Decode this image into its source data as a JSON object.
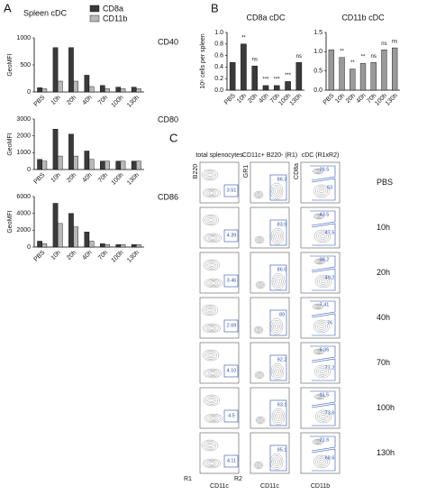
{
  "panel_labels": [
    "A",
    "B",
    "C"
  ],
  "chart_data": [
    {
      "type": "bar",
      "legend_title": "Spleen cDC",
      "title": "CD40",
      "ylabel": "GeoMFI",
      "categories": [
        "PBS",
        "10h",
        "20h",
        "40h",
        "70h",
        "100h",
        "130h"
      ],
      "series": [
        {
          "name": "CD8a",
          "color": "#3a3a3a",
          "values": [
            80,
            820,
            820,
            310,
            120,
            90,
            90
          ]
        },
        {
          "name": "CD11b",
          "color": "#b8b8b8",
          "values": [
            60,
            200,
            200,
            100,
            60,
            60,
            60
          ]
        }
      ],
      "ylim": [
        0,
        1000
      ],
      "yticks": [
        0,
        500,
        1000
      ]
    },
    {
      "type": "bar",
      "title": "CD80",
      "ylabel": "GeoMFI",
      "categories": [
        "PBS",
        "10h",
        "20h",
        "40h",
        "70h",
        "100h",
        "130h"
      ],
      "series": [
        {
          "color": "#3a3a3a",
          "values": [
            600,
            2400,
            2100,
            1100,
            500,
            500,
            500
          ]
        },
        {
          "color": "#b8b8b8",
          "values": [
            500,
            800,
            800,
            600,
            500,
            500,
            500
          ]
        }
      ],
      "ylim": [
        0,
        3000
      ],
      "yticks": [
        0,
        1000,
        2000,
        3000
      ]
    },
    {
      "type": "bar",
      "title": "CD86",
      "ylabel": "GeoMFI",
      "categories": [
        "PBS",
        "10h",
        "20h",
        "40h",
        "70h",
        "100h",
        "130h"
      ],
      "series": [
        {
          "color": "#3a3a3a",
          "values": [
            700,
            5200,
            4000,
            1800,
            400,
            300,
            300
          ]
        },
        {
          "color": "#b8b8b8",
          "values": [
            400,
            2800,
            2400,
            700,
            300,
            300,
            300
          ]
        }
      ],
      "ylim": [
        0,
        6000
      ],
      "yticks": [
        0,
        2000,
        4000,
        6000
      ]
    },
    {
      "type": "bar",
      "title": "CD8a cDC",
      "ylabel": "10⁶ cells per spleen",
      "categories": [
        "PBS",
        "10h",
        "20h",
        "40h",
        "70h",
        "100h",
        "130h"
      ],
      "series": [
        {
          "color": "#3a3a3a",
          "values": [
            0.48,
            0.8,
            0.42,
            0.08,
            0.08,
            0.15,
            0.48
          ]
        }
      ],
      "annotations": [
        null,
        "**",
        "ns",
        "***",
        "***",
        "***",
        "ns"
      ],
      "ylim": [
        0,
        1.0
      ],
      "yticks": [
        {
          "value": 0,
          "label": "0.0"
        },
        0.2,
        0.4,
        0.6,
        0.8,
        {
          "value": 1,
          "label": "1.0"
        }
      ]
    },
    {
      "type": "bar",
      "title": "CD11b cDC",
      "categories": [
        "PBS",
        "10h",
        "20h",
        "40h",
        "70h",
        "100h",
        "130h"
      ],
      "series": [
        {
          "color": "#9a9a9a",
          "values": [
            1.05,
            0.85,
            0.55,
            0.7,
            0.72,
            1.05,
            1.1
          ]
        }
      ],
      "annotations": [
        null,
        "**",
        "**",
        "**",
        "ns",
        "ns",
        "ns"
      ],
      "ylim": [
        0,
        1.5
      ],
      "yticks": [
        {
          "value": 0,
          "label": "0.0"
        },
        0.5,
        {
          "value": 1,
          "label": "1.0"
        },
        1.5
      ]
    }
  ],
  "flow": {
    "rows": [
      "PBS",
      "10h",
      "20h",
      "40h",
      "70h",
      "100h",
      "130h"
    ],
    "region_labels": [
      "R1",
      "R2"
    ],
    "columns": [
      {
        "title": "total splenocytes",
        "x_label": "CD11c",
        "y_label": "B220",
        "gates": [
          "3.51",
          "4.39",
          "3.46",
          "2.69",
          "4.10",
          "4.5",
          "4.11"
        ]
      },
      {
        "title": "CD11c+ B220- (R1)",
        "x_label": "CD11c",
        "y_label": "GR1",
        "gates": [
          "86.3",
          "83.9",
          "86.5",
          "89",
          "92.2",
          "93.1",
          "95.1"
        ]
      },
      {
        "title": "cDC (R1xR2)",
        "x_label": "CD11b",
        "y_label": "CD8a",
        "gates_upper": [
          "26.5",
          "43.5",
          "38.2",
          "7.41",
          "6.06",
          "11.5",
          "21.6"
        ],
        "gates": [
          "63",
          "47.5",
          "49.2",
          "76",
          "77.2",
          "73.6",
          "68.6"
        ]
      }
    ]
  }
}
